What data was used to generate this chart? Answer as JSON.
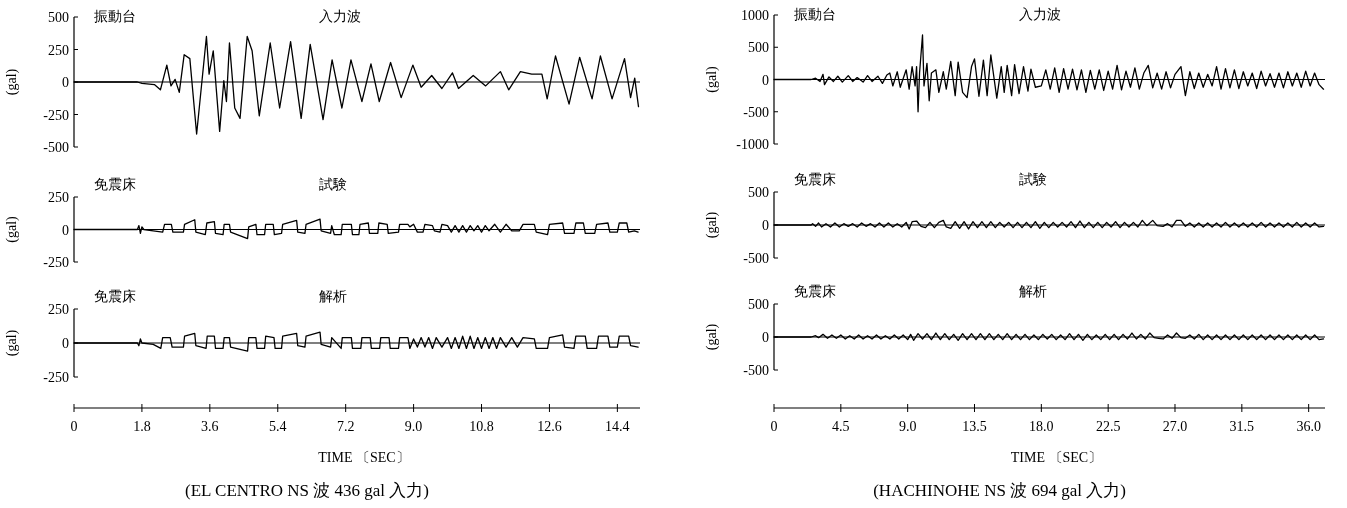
{
  "chart_data": [
    {
      "type": "line",
      "ylabel": "(gal)",
      "annotations": [
        "振動台",
        "入力波"
      ],
      "xlim": [
        0,
        15.0
      ],
      "ylim": [
        -500,
        500
      ],
      "yticks": [
        500,
        250,
        0,
        -250,
        -500
      ],
      "tick_labels": "y",
      "ref_lines": [
        {
          "axis": "y",
          "value": 0
        }
      ],
      "series": [
        {
          "color": "#000000",
          "x": [
            0,
            1.68,
            1.8,
            2.13,
            2.29,
            2.46,
            2.57,
            2.68,
            2.79,
            2.92,
            3.07,
            3.25,
            3.51,
            3.58,
            3.69,
            3.86,
            3.97,
            4.04,
            4.12,
            4.26,
            4.4,
            4.59,
            4.72,
            4.91,
            5.2,
            5.45,
            5.74,
            6.02,
            6.26,
            6.6,
            6.84,
            7.1,
            7.34,
            7.63,
            7.87,
            8.09,
            8.39,
            8.67,
            8.98,
            9.2,
            9.48,
            9.75,
            10.03,
            10.19,
            10.58,
            10.91,
            11.3,
            11.52,
            11.83,
            12.13,
            12.4,
            12.54,
            12.76,
            13.12,
            13.4,
            13.73,
            13.95,
            14.26,
            14.59,
            14.75,
            14.86,
            14.96
          ],
          "values": [
            0,
            0,
            -10,
            -20,
            -60,
            130,
            -30,
            20,
            -80,
            210,
            180,
            -400,
            350,
            60,
            240,
            -380,
            10,
            -150,
            300,
            -200,
            -280,
            350,
            240,
            -260,
            300,
            -200,
            310,
            -280,
            290,
            -290,
            170,
            -200,
            170,
            -150,
            140,
            -150,
            150,
            -120,
            130,
            -40,
            50,
            -50,
            70,
            -50,
            50,
            -30,
            80,
            -60,
            80,
            60,
            60,
            -130,
            200,
            -170,
            190,
            -130,
            200,
            -130,
            180,
            -120,
            30,
            -190
          ]
        }
      ]
    },
    {
      "type": "line",
      "ylabel": "(gal)",
      "annotations": [
        "免震床",
        "試験"
      ],
      "xlim": [
        0,
        15.0
      ],
      "ylim": [
        -250,
        250
      ],
      "yticks": [
        250,
        0,
        -250
      ],
      "tick_labels": "y",
      "ref_lines": [
        {
          "axis": "y",
          "value": 0
        }
      ],
      "series": [
        {
          "color": "#000000",
          "x": [
            0,
            1.68,
            1.72,
            1.76,
            1.8,
            1.85,
            2.1,
            2.35,
            2.4,
            2.58,
            2.62,
            2.9,
            2.93,
            3.2,
            3.23,
            3.48,
            3.52,
            3.72,
            3.75,
            3.95,
            3.98,
            4.12,
            4.15,
            4.6,
            4.63,
            4.82,
            4.85,
            5.05,
            5.08,
            5.28,
            5.31,
            5.5,
            5.53,
            5.9,
            5.93,
            6.12,
            6.15,
            6.52,
            6.55,
            6.8,
            6.83,
            6.9,
            7.08,
            7.11,
            7.35,
            7.38,
            7.55,
            7.58,
            7.8,
            7.83,
            8.05,
            8.08,
            8.3,
            8.33,
            8.6,
            8.63,
            8.85,
            8.9,
            9.0,
            9.1,
            9.25,
            9.3,
            9.5,
            9.55,
            9.7,
            9.75,
            9.9,
            10.0,
            10.1,
            10.2,
            10.3,
            10.4,
            10.5,
            10.6,
            10.7,
            10.8,
            10.9,
            11.0,
            11.15,
            11.3,
            11.45,
            11.6,
            11.8,
            11.9,
            12.2,
            12.25,
            12.55,
            12.6,
            12.95,
            13.0,
            13.25,
            13.3,
            13.5,
            13.55,
            13.8,
            13.85,
            14.15,
            14.2,
            14.4,
            14.45,
            14.65,
            14.7,
            14.85,
            14.95
          ],
          "values": [
            0,
            0,
            30,
            -30,
            20,
            0,
            -10,
            -20,
            40,
            40,
            -20,
            -20,
            40,
            75,
            -20,
            -40,
            50,
            60,
            -30,
            -40,
            40,
            40,
            -20,
            -70,
            20,
            40,
            -40,
            -40,
            40,
            40,
            -40,
            -30,
            40,
            70,
            -20,
            -30,
            40,
            80,
            -10,
            -30,
            30,
            -40,
            -40,
            40,
            40,
            -40,
            -40,
            40,
            50,
            -30,
            -30,
            50,
            40,
            -30,
            -20,
            40,
            40,
            20,
            40,
            -20,
            -20,
            40,
            30,
            -10,
            -20,
            40,
            30,
            -20,
            30,
            -20,
            30,
            -20,
            30,
            -10,
            30,
            -20,
            30,
            -10,
            40,
            -20,
            40,
            -10,
            -10,
            40,
            40,
            -20,
            -40,
            40,
            50,
            -30,
            -30,
            50,
            50,
            -30,
            -30,
            40,
            50,
            -20,
            -20,
            50,
            50,
            -20,
            -10,
            -20
          ]
        }
      ]
    },
    {
      "type": "line",
      "ylabel": "(gal)",
      "xlabel": "TIME 〔SEC〕",
      "annotations": [
        "免震床",
        "解析",
        "(EL CENTRO NS 波 436 gal 入力)"
      ],
      "xlim": [
        0,
        15.0
      ],
      "xticks": [
        0,
        1.8,
        3.6,
        5.4,
        7.2,
        {
          "value": 9,
          "label": "9.0"
        },
        10.8,
        12.6,
        14.4
      ],
      "ylim": [
        -250,
        250
      ],
      "yticks": [
        250,
        0,
        -250
      ],
      "ref_lines": [
        {
          "axis": "y",
          "value": 0
        }
      ],
      "series": [
        {
          "color": "#000000",
          "x": [
            0,
            1.68,
            1.72,
            1.76,
            1.8,
            2.1,
            2.3,
            2.35,
            2.55,
            2.6,
            2.9,
            2.93,
            3.2,
            3.23,
            3.5,
            3.53,
            3.72,
            3.75,
            3.95,
            3.98,
            4.12,
            4.15,
            4.6,
            4.63,
            4.82,
            4.85,
            5.05,
            5.08,
            5.3,
            5.33,
            5.5,
            5.53,
            5.9,
            5.93,
            6.12,
            6.15,
            6.52,
            6.55,
            6.8,
            6.83,
            7.08,
            7.11,
            7.35,
            7.38,
            7.6,
            7.63,
            7.85,
            7.88,
            8.1,
            8.13,
            8.35,
            8.38,
            8.6,
            8.63,
            8.85,
            8.9,
            9.0,
            9.1,
            9.2,
            9.3,
            9.4,
            9.5,
            9.6,
            9.75,
            9.9,
            10.0,
            10.1,
            10.2,
            10.3,
            10.4,
            10.5,
            10.6,
            10.7,
            10.8,
            10.9,
            11.0,
            11.1,
            11.2,
            11.3,
            11.45,
            11.6,
            11.75,
            11.9,
            12.2,
            12.25,
            12.55,
            12.6,
            12.95,
            13.0,
            13.25,
            13.3,
            13.55,
            13.6,
            13.85,
            13.9,
            14.15,
            14.2,
            14.4,
            14.45,
            14.7,
            14.75,
            14.95
          ],
          "values": [
            0,
            0,
            -20,
            30,
            0,
            -10,
            -40,
            40,
            40,
            -30,
            -30,
            50,
            70,
            -20,
            -40,
            50,
            50,
            -40,
            -40,
            40,
            40,
            -30,
            -60,
            40,
            40,
            -40,
            -40,
            50,
            40,
            -40,
            -40,
            50,
            70,
            -20,
            -30,
            50,
            80,
            -10,
            -30,
            40,
            -40,
            40,
            40,
            -40,
            -40,
            40,
            40,
            -40,
            -40,
            40,
            40,
            -40,
            -40,
            40,
            40,
            -40,
            30,
            -30,
            40,
            -30,
            40,
            -40,
            40,
            -30,
            40,
            -40,
            40,
            -40,
            50,
            -40,
            50,
            -40,
            40,
            -40,
            40,
            -40,
            40,
            -40,
            40,
            -30,
            40,
            -30,
            40,
            30,
            -40,
            -40,
            40,
            60,
            -30,
            -40,
            50,
            50,
            -40,
            -40,
            50,
            50,
            -30,
            -30,
            50,
            50,
            -20,
            -30
          ]
        }
      ]
    },
    {
      "type": "line",
      "ylabel": "(gal)",
      "annotations": [
        "振動台",
        "入力波"
      ],
      "xlim": [
        0,
        37.1
      ],
      "ylim": [
        -1000,
        1000
      ],
      "yticks": [
        1000,
        500,
        0,
        -500,
        -1000
      ],
      "tick_labels": "y",
      "ref_lines": [
        {
          "axis": "y",
          "value": 0
        }
      ],
      "series": [
        {
          "color": "#000000",
          "x": [
            0,
            2.5,
            2.8,
            3.1,
            3.3,
            3.4,
            3.7,
            4.0,
            4.3,
            4.6,
            5.0,
            5.3,
            5.6,
            6.0,
            6.3,
            6.6,
            7.0,
            7.3,
            7.6,
            7.8,
            8.0,
            8.3,
            8.5,
            8.9,
            9.1,
            9.3,
            9.5,
            9.6,
            9.7,
            9.8,
            10.0,
            10.1,
            10.3,
            10.45,
            10.6,
            10.9,
            11.1,
            11.4,
            11.6,
            11.9,
            12.2,
            12.4,
            12.7,
            13.0,
            13.3,
            13.5,
            13.8,
            14.1,
            14.35,
            14.6,
            15.0,
            15.3,
            15.5,
            15.7,
            16.0,
            16.2,
            16.5,
            16.8,
            17.1,
            17.3,
            17.6,
            18.0,
            18.3,
            18.6,
            18.9,
            19.2,
            19.5,
            19.8,
            20.1,
            20.4,
            20.7,
            21.0,
            21.3,
            21.6,
            21.9,
            22.2,
            22.5,
            22.8,
            23.1,
            23.4,
            23.7,
            24.0,
            24.3,
            24.6,
            24.9,
            25.2,
            25.5,
            25.8,
            26.1,
            26.4,
            26.7,
            27.0,
            27.4,
            27.7,
            28.0,
            28.3,
            28.6,
            28.9,
            29.2,
            29.5,
            29.8,
            30.1,
            30.4,
            30.7,
            31.0,
            31.3,
            31.6,
            31.9,
            32.2,
            32.5,
            32.8,
            33.1,
            33.4,
            33.7,
            34.0,
            34.3,
            34.6,
            34.9,
            35.2,
            35.5,
            35.8,
            36.1,
            36.4,
            36.7,
            37.0
          ],
          "values": [
            0,
            0,
            20,
            -30,
            80,
            -80,
            40,
            -30,
            50,
            -40,
            60,
            -30,
            30,
            -40,
            60,
            -30,
            50,
            -60,
            70,
            100,
            -100,
            120,
            -120,
            150,
            -150,
            200,
            -100,
            200,
            -500,
            100,
            690,
            -100,
            250,
            -330,
            100,
            150,
            -200,
            120,
            -150,
            280,
            -250,
            270,
            -200,
            -280,
            200,
            320,
            -260,
            300,
            -250,
            380,
            -290,
            200,
            -200,
            220,
            -250,
            230,
            -220,
            200,
            -180,
            160,
            -120,
            -100,
            150,
            -150,
            180,
            -200,
            170,
            -150,
            160,
            -160,
            150,
            -200,
            140,
            -150,
            150,
            -170,
            130,
            -150,
            220,
            -160,
            130,
            -120,
            180,
            -150,
            100,
            220,
            -130,
            100,
            -150,
            120,
            -130,
            80,
            200,
            -250,
            120,
            -140,
            100,
            -120,
            80,
            -100,
            200,
            -150,
            170,
            -130,
            150,
            -140,
            120,
            -100,
            100,
            -140,
            130,
            -100,
            90,
            -120,
            100,
            -130,
            120,
            -100,
            100,
            -120,
            130,
            -100,
            100,
            -80,
            -150
          ]
        }
      ]
    },
    {
      "type": "line",
      "ylabel": "(gal)",
      "annotations": [
        "免震床",
        "試験"
      ],
      "xlim": [
        0,
        37.1
      ],
      "ylim": [
        -500,
        500
      ],
      "yticks": [
        500,
        0,
        -500
      ],
      "tick_labels": "y",
      "ref_lines": [
        {
          "axis": "y",
          "value": 0
        }
      ],
      "series": [
        {
          "color": "#000000",
          "x": [
            0,
            2.5,
            2.6,
            2.8,
            3.0,
            3.2,
            3.5,
            3.8,
            4.1,
            4.4,
            4.7,
            5.0,
            5.3,
            5.6,
            5.9,
            6.2,
            6.5,
            6.8,
            7.1,
            7.4,
            7.7,
            8.0,
            8.3,
            8.6,
            8.9,
            9.1,
            9.3,
            9.6,
            9.9,
            10.2,
            10.5,
            10.8,
            11.1,
            11.4,
            11.6,
            11.9,
            12.2,
            12.5,
            12.8,
            13.1,
            13.4,
            13.7,
            14.0,
            14.3,
            14.6,
            14.9,
            15.2,
            15.5,
            15.8,
            16.1,
            16.4,
            16.7,
            17.0,
            17.3,
            17.6,
            17.9,
            18.2,
            18.5,
            18.8,
            19.1,
            19.4,
            19.7,
            20.0,
            20.3,
            20.6,
            20.9,
            21.2,
            21.5,
            21.8,
            22.1,
            22.4,
            22.7,
            23.0,
            23.3,
            23.6,
            23.9,
            24.2,
            24.5,
            24.8,
            25.1,
            25.5,
            25.8,
            26.2,
            26.5,
            26.8,
            27.1,
            27.4,
            27.7,
            28.0,
            28.3,
            28.6,
            28.9,
            29.2,
            29.5,
            29.8,
            30.1,
            30.4,
            30.7,
            31.0,
            31.3,
            31.6,
            31.9,
            32.2,
            32.5,
            32.8,
            33.1,
            33.4,
            33.7,
            34.0,
            34.3,
            34.6,
            34.9,
            35.2,
            35.5,
            35.8,
            36.1,
            36.4,
            36.7,
            37.0
          ],
          "values": [
            0,
            0,
            20,
            -20,
            30,
            -30,
            20,
            -30,
            30,
            -30,
            20,
            -20,
            20,
            -30,
            30,
            -20,
            20,
            -30,
            30,
            -30,
            30,
            -30,
            20,
            -30,
            40,
            -60,
            50,
            60,
            -20,
            -40,
            40,
            -40,
            40,
            70,
            -30,
            -50,
            50,
            -50,
            50,
            -60,
            50,
            -40,
            50,
            -40,
            50,
            -40,
            40,
            -30,
            40,
            -40,
            40,
            -40,
            40,
            -40,
            50,
            -50,
            40,
            -40,
            40,
            -30,
            40,
            -30,
            50,
            -40,
            60,
            -40,
            40,
            -40,
            40,
            -40,
            40,
            -30,
            50,
            -40,
            40,
            -30,
            40,
            -30,
            70,
            -10,
            70,
            -10,
            -20,
            20,
            -30,
            70,
            70,
            -20,
            30,
            -30,
            30,
            -30,
            30,
            -30,
            30,
            -30,
            40,
            -30,
            30,
            -30,
            30,
            -30,
            30,
            -30,
            40,
            -30,
            30,
            -30,
            30,
            -30,
            30,
            -30,
            40,
            -30,
            30,
            -30,
            30,
            -30,
            -20
          ]
        }
      ]
    },
    {
      "type": "line",
      "ylabel": "(gal)",
      "xlabel": "TIME 〔SEC〕",
      "annotations": [
        "免震床",
        "解析",
        "(HACHINOHE NS 波 694 gal 入力)"
      ],
      "xlim": [
        0,
        37.1
      ],
      "xticks": [
        0,
        4.5,
        {
          "value": 9,
          "label": "9.0"
        },
        13.5,
        {
          "value": 18,
          "label": "18.0"
        },
        22.5,
        {
          "value": 27,
          "label": "27.0"
        },
        31.5,
        {
          "value": 36,
          "label": "36.0"
        }
      ],
      "ylim": [
        -500,
        500
      ],
      "yticks": [
        500,
        0,
        -500
      ],
      "ref_lines": [
        {
          "axis": "y",
          "value": 0
        }
      ],
      "series": [
        {
          "color": "#000000",
          "x": [
            0,
            2.5,
            2.8,
            3.0,
            3.3,
            3.6,
            3.9,
            4.2,
            4.5,
            4.8,
            5.1,
            5.4,
            5.7,
            6.0,
            6.3,
            6.6,
            6.9,
            7.2,
            7.5,
            7.8,
            8.1,
            8.4,
            8.7,
            9.0,
            9.2,
            9.4,
            9.7,
            10.0,
            10.3,
            10.6,
            10.9,
            11.2,
            11.5,
            11.8,
            12.1,
            12.4,
            12.7,
            13.0,
            13.3,
            13.6,
            13.9,
            14.2,
            14.5,
            14.8,
            15.1,
            15.4,
            15.7,
            16.0,
            16.3,
            16.6,
            16.9,
            17.2,
            17.5,
            17.8,
            18.1,
            18.4,
            18.7,
            19.0,
            19.3,
            19.6,
            19.9,
            20.2,
            20.5,
            20.8,
            21.1,
            21.4,
            21.7,
            22.0,
            22.3,
            22.6,
            22.9,
            23.2,
            23.5,
            23.8,
            24.1,
            24.4,
            24.7,
            25.0,
            25.3,
            25.6,
            25.9,
            26.2,
            26.5,
            26.8,
            27.1,
            27.4,
            27.7,
            28.0,
            28.3,
            28.6,
            28.9,
            29.2,
            29.5,
            29.8,
            30.1,
            30.4,
            30.7,
            31.0,
            31.3,
            31.6,
            31.9,
            32.2,
            32.5,
            32.8,
            33.1,
            33.4,
            33.7,
            34.0,
            34.3,
            34.6,
            34.9,
            35.2,
            35.5,
            35.8,
            36.1,
            36.4,
            36.7,
            37.0
          ],
          "values": [
            0,
            0,
            20,
            -10,
            40,
            -20,
            30,
            -20,
            30,
            -30,
            20,
            -30,
            30,
            -30,
            20,
            -30,
            30,
            -30,
            20,
            -30,
            30,
            -30,
            30,
            -40,
            40,
            -50,
            50,
            -30,
            50,
            -40,
            60,
            -40,
            50,
            -40,
            40,
            -50,
            50,
            -40,
            50,
            -40,
            50,
            -40,
            50,
            -40,
            40,
            -40,
            50,
            -40,
            40,
            -40,
            40,
            -40,
            30,
            -40,
            40,
            -30,
            40,
            -40,
            30,
            -40,
            50,
            -40,
            40,
            -50,
            40,
            -40,
            30,
            -40,
            40,
            -40,
            40,
            -40,
            40,
            -30,
            60,
            -30,
            40,
            -30,
            60,
            -10,
            -20,
            -30,
            30,
            -20,
            60,
            -10,
            -20,
            30,
            -30,
            40,
            -40,
            30,
            -40,
            30,
            -40,
            30,
            -40,
            30,
            -40,
            30,
            -40,
            30,
            -40,
            30,
            -40,
            30,
            -40,
            30,
            -40,
            30,
            -40,
            30,
            -40,
            30,
            -40,
            30,
            -40,
            -30
          ]
        }
      ]
    }
  ]
}
